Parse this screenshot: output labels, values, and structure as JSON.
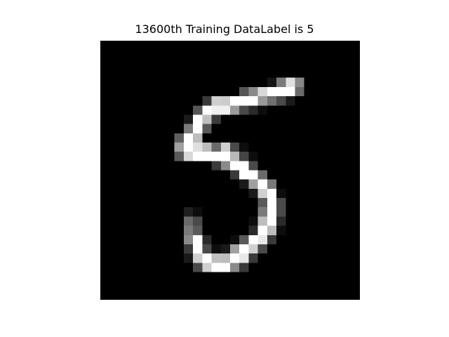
{
  "figure": {
    "title": "13600th Training DataLabel is 5"
  },
  "image": {
    "label": 5,
    "colormap": "gray",
    "background": "#000000",
    "stroke": "#ffffff"
  }
}
